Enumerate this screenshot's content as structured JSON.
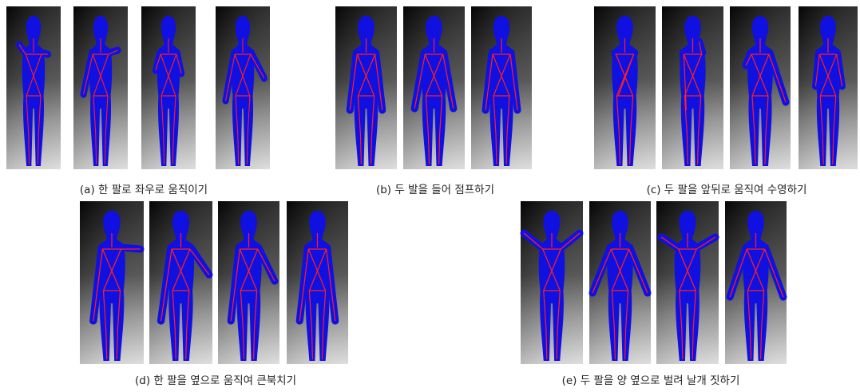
{
  "figures": [
    {
      "caption": "(a) 한 팔로 좌우로 움직이기"
    },
    {
      "caption": "(b) 두 발을 들어 점프하기"
    },
    {
      "caption": "(c) 두 팔을 앞뒤로 움직여 수영하기"
    },
    {
      "caption": "(d) 한 팔을 옆으로 움직여 큰북치기"
    },
    {
      "caption": "(e) 두 팔을 양 옆으로 벌려 날개 짓하기"
    }
  ]
}
